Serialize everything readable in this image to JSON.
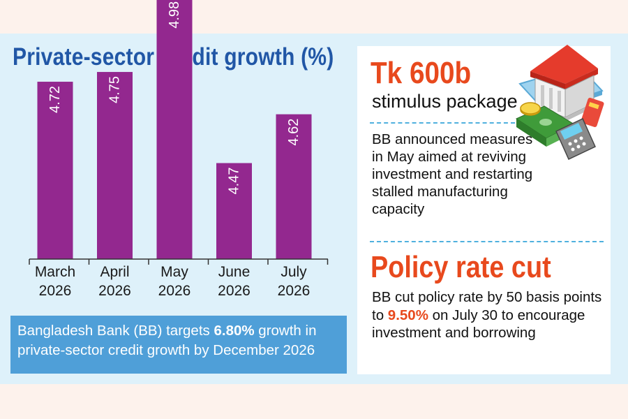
{
  "chart_data": {
    "type": "bar",
    "title": "Private-sector credit growth (%)",
    "categories": [
      {
        "line1": "March",
        "line2": "2026"
      },
      {
        "line1": "April",
        "line2": "2026"
      },
      {
        "line1": "May",
        "line2": "2026"
      },
      {
        "line1": "June",
        "line2": "2026"
      },
      {
        "line1": "July",
        "line2": "2026"
      }
    ],
    "values": [
      4.72,
      4.75,
      4.98,
      4.47,
      4.62
    ],
    "value_labels": [
      "4.72",
      "4.75",
      "4.98",
      "4.47",
      "4.62"
    ],
    "grid": false,
    "bar_color": "#93288f"
  },
  "note": {
    "prefix": "Bangladesh Bank (BB) targets ",
    "highlight": "6.80%",
    "suffix": " growth in private-sector credit growth by December 2026"
  },
  "stimulus": {
    "headline": "Tk 600b",
    "subhead": "stimulus package",
    "description": "BB announced measures in May aimed at reviving investment and restarting stalled manufacturing capacity"
  },
  "policy": {
    "headline": "Policy rate cut",
    "text_before": "BB cut policy rate by 50 basis points to ",
    "highlight": "9.50%",
    "text_after": " on July 30 to encourage investment and borrowing"
  },
  "colors": {
    "title": "#2157a6",
    "accent": "#e8491d",
    "bar": "#93288f",
    "note_bg": "#4f9fd8",
    "panel_bg": "#def1fa"
  },
  "icons": [
    "bank-building-icon",
    "cash-stack-icon",
    "coin-icon",
    "card-terminal-icon"
  ]
}
